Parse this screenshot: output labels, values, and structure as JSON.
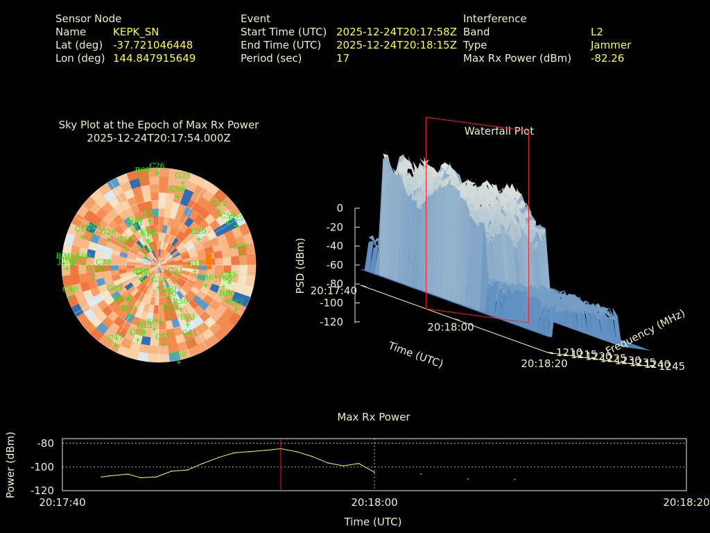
{
  "header": {
    "sensor": {
      "heading": "Sensor Node",
      "name_label": "Name",
      "name": "KEPK_SN",
      "lat_label": "Lat (deg)",
      "lat": "-37.721046448",
      "lon_label": "Lon (deg)",
      "lon": "144.847915649"
    },
    "event": {
      "heading": "Event",
      "start_label": "Start Time (UTC)",
      "start": "2025-12-24T20:17:58Z",
      "end_label": "End Time (UTC)",
      "end": "2025-12-24T20:18:15Z",
      "period_label": "Period (sec)",
      "period": "17"
    },
    "interference": {
      "heading": "Interference",
      "band_label": "Band",
      "band": "L2",
      "type_label": "Type",
      "type": "Jammer",
      "power_label": "Max Rx Power (dBm)",
      "power": "-82.26"
    }
  },
  "colors": {
    "background": "#000000",
    "text": "#f0f0c8",
    "value": "#ffff30",
    "satellite": "#00ff00",
    "trace": "#ffff40",
    "marker": "#ff2020"
  },
  "chart_data": [
    {
      "type": "heatmap",
      "title": "Sky Plot at the Epoch of Max Rx Power",
      "subtitle": "2025-12-24T20:17:54.000Z",
      "satellites": [
        "I196",
        "E36",
        "G21",
        "E03",
        "C58",
        "C60",
        "C57",
        "E04",
        "C09",
        "J196",
        "G03",
        "C27",
        "C36",
        "R21",
        "C38",
        "C19",
        "G26",
        "E33",
        "E11",
        "G18",
        "C26",
        "E10",
        "G25",
        "C08",
        "E12",
        "C20",
        "E25",
        "C59",
        "G12",
        "G32",
        "C45",
        "R06",
        "R22",
        "C41",
        "C10",
        "R59",
        "E19",
        "G14",
        "R23",
        "C47",
        "R07",
        "C40",
        "C33",
        "J194",
        "G09",
        "R13",
        "C23",
        "G28",
        "C24",
        "E05",
        "R08"
      ],
      "grid": true
    },
    {
      "type": "area",
      "title": "Waterfall Plot",
      "xlabel": "Time (UTC)",
      "ylabel": "Frequency (MHz)",
      "zlabel": "PSD (dBm)",
      "x_ticks": [
        "20:17:40",
        "20:18:00",
        "20:18:20"
      ],
      "y_ticks": [
        "1210",
        "1215",
        "1220",
        "1225",
        "1230",
        "1235",
        "1240",
        "1245"
      ],
      "z_ticks": [
        "0",
        "-20",
        "-40",
        "-60",
        "-80",
        "-100",
        "-120"
      ],
      "zlim": [
        -120,
        0
      ],
      "ylim": [
        1210,
        1245
      ]
    },
    {
      "type": "line",
      "title": "Max Rx Power",
      "xlabel": "Time (UTC)",
      "ylabel": "Power (dBm)",
      "x_ticks": [
        "20:17:40",
        "20:18:00",
        "20:18:20"
      ],
      "y_ticks": [
        "-80",
        "-100",
        "-120"
      ],
      "xlim": [
        0,
        40
      ],
      "ylim": [
        -120,
        -76
      ],
      "marker_x": 14,
      "grid": true,
      "x": [
        2.5,
        3.0,
        4.2,
        5.0,
        6.0,
        7.0,
        8.0,
        9.0,
        10.0,
        11.0,
        12.0,
        13.0,
        14.0,
        15.0,
        16.0,
        17.0,
        18.0,
        19.0,
        20.0
      ],
      "y": [
        -108.5,
        -107.5,
        -106,
        -109,
        -108.5,
        -103.5,
        -102.5,
        -97,
        -92,
        -88,
        -87,
        -86,
        -84.5,
        -87,
        -91,
        -96.5,
        -99,
        -97,
        -104.5
      ],
      "x2": [
        23,
        26,
        29
      ],
      "y2": [
        -106,
        -110,
        -110.5
      ]
    }
  ]
}
